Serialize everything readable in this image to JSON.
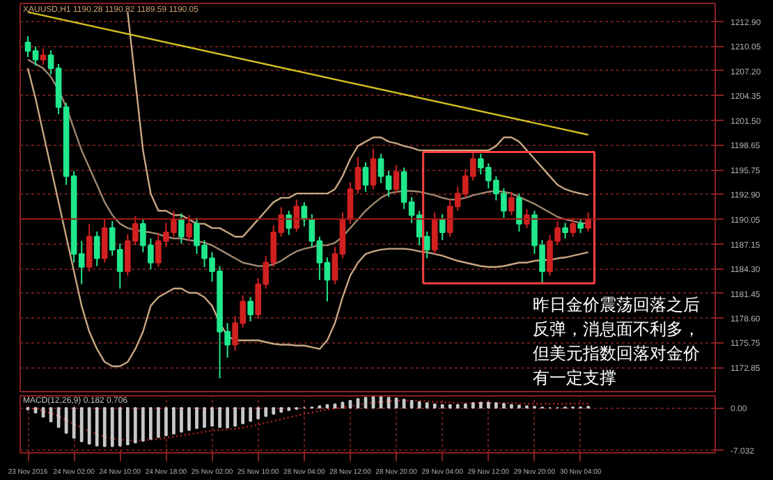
{
  "chart_data": [
    {
      "type": "candlestick",
      "categories": [
        null,
        null,
        null,
        null,
        null,
        null,
        null,
        null,
        null,
        null,
        null,
        null,
        null,
        null,
        null,
        null,
        null,
        null,
        null,
        null,
        null,
        null,
        null,
        null,
        null,
        null,
        null,
        null,
        null,
        null,
        null,
        null,
        null,
        null,
        null,
        null,
        null,
        null,
        null,
        null,
        null,
        null,
        null,
        null,
        null,
        null,
        null,
        null,
        null,
        null,
        null,
        null,
        null,
        null,
        null,
        null,
        null,
        null,
        null,
        null,
        null,
        null,
        null,
        null,
        null,
        null,
        null,
        null,
        null,
        null,
        null,
        null,
        null,
        null
      ],
      "ohlc": [
        [
          1210.5,
          1211.2,
          1208.8,
          1209.5
        ],
        [
          1209.5,
          1210.0,
          1207.8,
          1208.5
        ],
        [
          1208.5,
          1209.8,
          1207.9,
          1209.0
        ],
        [
          1209.0,
          1209.6,
          1206.8,
          1207.5
        ],
        [
          1207.5,
          1208.0,
          1202.2,
          1203.0
        ],
        [
          1203.0,
          1203.5,
          1194.0,
          1195.0
        ],
        [
          1195.0,
          1195.6,
          1185.0,
          1186.0
        ],
        [
          1186.0,
          1187.5,
          1182.5,
          1184.5
        ],
        [
          1184.5,
          1189.5,
          1184.0,
          1188.0
        ],
        [
          1188.0,
          1188.6,
          1184.6,
          1185.5
        ],
        [
          1185.5,
          1190.0,
          1185.0,
          1189.0
        ],
        [
          1189.0,
          1189.8,
          1185.8,
          1186.5
        ],
        [
          1186.5,
          1187.2,
          1182.0,
          1184.0
        ],
        [
          1184.0,
          1188.3,
          1183.5,
          1187.5
        ],
        [
          1187.5,
          1190.4,
          1187.0,
          1189.5
        ],
        [
          1189.5,
          1190.0,
          1186.2,
          1187.0
        ],
        [
          1187.0,
          1187.8,
          1184.2,
          1185.0
        ],
        [
          1185.0,
          1188.4,
          1184.5,
          1187.5
        ],
        [
          1187.5,
          1189.6,
          1186.8,
          1188.5
        ],
        [
          1188.5,
          1191.0,
          1188.0,
          1190.0
        ],
        [
          1190.0,
          1190.7,
          1187.2,
          1188.0
        ],
        [
          1188.0,
          1190.5,
          1187.5,
          1189.5
        ],
        [
          1189.5,
          1190.2,
          1186.0,
          1187.0
        ],
        [
          1187.0,
          1187.6,
          1184.5,
          1185.5
        ],
        [
          1185.5,
          1186.2,
          1182.8,
          1184.0
        ],
        [
          1184.0,
          1184.6,
          1171.6,
          1177.0
        ],
        [
          1177.0,
          1178.0,
          1174.0,
          1175.5
        ],
        [
          1175.5,
          1178.8,
          1174.8,
          1178.0
        ],
        [
          1178.0,
          1181.2,
          1177.5,
          1180.5
        ],
        [
          1180.5,
          1181.0,
          1178.2,
          1179.0
        ],
        [
          1179.0,
          1183.2,
          1178.5,
          1182.5
        ],
        [
          1182.5,
          1185.8,
          1182.0,
          1185.0
        ],
        [
          1185.0,
          1189.3,
          1184.5,
          1188.5
        ],
        [
          1188.5,
          1191.4,
          1188.0,
          1190.5
        ],
        [
          1190.5,
          1191.0,
          1188.2,
          1189.0
        ],
        [
          1189.0,
          1192.3,
          1188.6,
          1191.5
        ],
        [
          1191.5,
          1192.0,
          1189.2,
          1190.0
        ],
        [
          1190.0,
          1190.6,
          1186.8,
          1187.5
        ],
        [
          1187.5,
          1188.0,
          1183.0,
          1185.0
        ],
        [
          1185.0,
          1185.6,
          1180.5,
          1183.0
        ],
        [
          1183.0,
          1186.8,
          1182.5,
          1186.0
        ],
        [
          1186.0,
          1190.8,
          1185.5,
          1190.0
        ],
        [
          1190.0,
          1194.3,
          1189.5,
          1193.5
        ],
        [
          1193.5,
          1197.2,
          1193.0,
          1196.0
        ],
        [
          1196.0,
          1196.6,
          1193.2,
          1194.0
        ],
        [
          1194.0,
          1198.2,
          1193.5,
          1197.0
        ],
        [
          1197.0,
          1197.6,
          1194.2,
          1195.0
        ],
        [
          1195.0,
          1195.6,
          1192.6,
          1193.5
        ],
        [
          1193.5,
          1196.3,
          1193.0,
          1195.5
        ],
        [
          1195.5,
          1196.0,
          1191.2,
          1192.0
        ],
        [
          1192.0,
          1192.6,
          1189.6,
          1190.5
        ],
        [
          1190.5,
          1191.0,
          1187.0,
          1188.0
        ],
        [
          1188.0,
          1188.6,
          1185.5,
          1186.5
        ],
        [
          1186.5,
          1190.8,
          1186.0,
          1190.0
        ],
        [
          1190.0,
          1190.6,
          1187.6,
          1188.5
        ],
        [
          1188.5,
          1192.3,
          1188.0,
          1191.5
        ],
        [
          1191.5,
          1193.8,
          1191.0,
          1193.0
        ],
        [
          1193.0,
          1195.8,
          1192.5,
          1195.0
        ],
        [
          1195.0,
          1197.8,
          1194.5,
          1197.0
        ],
        [
          1197.0,
          1197.6,
          1195.2,
          1196.0
        ],
        [
          1196.0,
          1196.5,
          1193.6,
          1194.5
        ],
        [
          1194.5,
          1195.0,
          1192.2,
          1193.0
        ],
        [
          1193.0,
          1193.6,
          1190.2,
          1191.0
        ],
        [
          1191.0,
          1193.2,
          1190.5,
          1192.5
        ],
        [
          1192.5,
          1193.0,
          1188.6,
          1189.5
        ],
        [
          1189.5,
          1191.2,
          1189.0,
          1190.5
        ],
        [
          1190.5,
          1191.0,
          1186.0,
          1187.0
        ],
        [
          1187.0,
          1187.6,
          1182.6,
          1184.0
        ],
        [
          1184.0,
          1188.2,
          1183.5,
          1187.5
        ],
        [
          1187.5,
          1189.8,
          1187.0,
          1189.0
        ],
        [
          1189.0,
          1189.6,
          1187.8,
          1188.5
        ],
        [
          1188.5,
          1190.2,
          1188.0,
          1189.5
        ],
        [
          1189.5,
          1190.0,
          1188.4,
          1189.0
        ],
        [
          1189.0,
          1190.8,
          1188.6,
          1190.0
        ]
      ],
      "series": [
        {
          "type": "line",
          "color": "#c8a882",
          "values": [
            null,
            null,
            null,
            null,
            null,
            null,
            null,
            null,
            null,
            null,
            null,
            null,
            null,
            1214,
            1206,
            1198,
            1193,
            1191,
            1191,
            1190.5,
            1190.5,
            1190,
            1189.5,
            1189.5,
            1189,
            1189,
            1188.5,
            1188,
            1188,
            1189,
            1190,
            1191,
            1192,
            1192.5,
            1192.5,
            1193,
            1193,
            1193,
            1193,
            1193,
            1193.5,
            1195,
            1197,
            1198.5,
            1199,
            1199.5,
            1199.5,
            1199,
            1198.8,
            1198.5,
            1198.3,
            1198,
            1198,
            1198,
            1198,
            1198,
            1198,
            1198,
            1198,
            1198,
            1198,
            1198.5,
            1199.5,
            1199.5,
            1199,
            1198,
            1197,
            1196,
            1195,
            1194,
            1193.5,
            1193.2,
            1193,
            1192.8
          ]
        },
        {
          "type": "line",
          "color": "#a08870",
          "values": [
            1208.5,
            1208,
            1207.5,
            1206.5,
            1205,
            1203,
            1200.5,
            1198,
            1196,
            1194,
            1192,
            1190.5,
            1189.5,
            1189,
            1188.8,
            1188.6,
            1188.5,
            1188.3,
            1188,
            1187.8,
            1187.8,
            1187.6,
            1187.5,
            1187.3,
            1187,
            1186.5,
            1186,
            1185.5,
            1185,
            1184.8,
            1184.6,
            1184.6,
            1184.8,
            1185.2,
            1185.8,
            1186.3,
            1186.6,
            1186.8,
            1187,
            1187,
            1187.3,
            1188,
            1189,
            1190,
            1191,
            1191.8,
            1192.5,
            1193,
            1193.2,
            1193.3,
            1193.3,
            1193.2,
            1193,
            1192.8,
            1192.5,
            1192.3,
            1192.3,
            1192.5,
            1192.8,
            1193,
            1193.2,
            1193.3,
            1193.2,
            1193,
            1192.6,
            1192.2,
            1191.8,
            1191.3,
            1190.8,
            1190.3,
            1190,
            1189.8,
            1189.6,
            1189.5
          ]
        },
        {
          "type": "line",
          "color": "#c8a882",
          "values": [
            1207.5,
            1204,
            1200,
            1196,
            1192,
            1188,
            1184,
            1180,
            1177,
            1175,
            1173.5,
            1173,
            1173,
            1173.5,
            1175,
            1177,
            1180,
            1181,
            1181.5,
            1182,
            1182,
            1181.5,
            1181.5,
            1181,
            1180,
            1178,
            1176.5,
            1176,
            1176,
            1176,
            1176,
            1175.8,
            1175.6,
            1175.5,
            1175.5,
            1175.4,
            1175.4,
            1175.2,
            1175,
            1176,
            1178,
            1181,
            1183.5,
            1185,
            1186,
            1186.3,
            1186.5,
            1186.6,
            1186.6,
            1186.6,
            1186.5,
            1186.3,
            1186.2,
            1186,
            1185.8,
            1185.5,
            1185.2,
            1185,
            1184.8,
            1184.6,
            1184.5,
            1184.5,
            1184.6,
            1184.8,
            1185,
            1185,
            1185.2,
            1185.3,
            1185.3,
            1185.5,
            1185.6,
            1185.8,
            1186,
            1186.2
          ]
        },
        {
          "type": "line",
          "color": "#d4c020",
          "values": [
            1214.0,
            null,
            null,
            null,
            null,
            null,
            null,
            null,
            null,
            null,
            null,
            null,
            null,
            null,
            null,
            null,
            null,
            null,
            null,
            null,
            null,
            null,
            null,
            null,
            null,
            null,
            null,
            null,
            null,
            null,
            null,
            null,
            null,
            null,
            null,
            null,
            null,
            null,
            null,
            null,
            null,
            null,
            null,
            null,
            null,
            null,
            null,
            null,
            null,
            null,
            null,
            null,
            null,
            null,
            null,
            null,
            null,
            null,
            null,
            null,
            null,
            null,
            null,
            null,
            null,
            null,
            null,
            null,
            null,
            null,
            null,
            null,
            null,
            1199.8
          ]
        }
      ],
      "ylim": [
        1169.9,
        1215.0
      ],
      "yticks": [
        {
          "value": 1212.9,
          "label": "1212.90"
        },
        {
          "value": 1210.05,
          "label": "1210.05"
        },
        {
          "value": 1207.2,
          "label": "1207.20"
        },
        {
          "value": 1204.35,
          "label": "1204.35"
        },
        {
          "value": 1201.5,
          "label": "1201.50"
        },
        {
          "value": 1198.65,
          "label": "1198.65"
        },
        {
          "value": 1195.75,
          "label": "1195.75"
        },
        {
          "value": 1192.9,
          "label": "1192.90"
        },
        {
          "value": 1187.15,
          "label": "1187.15"
        },
        {
          "value": 1184.3,
          "label": "1184.30"
        },
        {
          "value": 1181.45,
          "label": "1181.45"
        },
        {
          "value": 1178.6,
          "label": "1178.60"
        },
        {
          "value": 1175.75,
          "label": "1175.75"
        },
        {
          "value": 1172.85,
          "label": "1172.85"
        }
      ],
      "grid": true,
      "tick_labels": "y",
      "ref_lines": [
        {
          "axis": "y",
          "value": 1190.05,
          "label": "1190.05",
          "color": "#a01818"
        }
      ],
      "annotations": [
        "XAUUSD,H1 1190.28 1190.82 1189.59 1190.05",
        "昨日金价震荡回落之后反弹，消息面不利多，但美元指数回落对金价有一定支撑"
      ]
    },
    {
      "type": "bar",
      "categories": [
        "23 Nov 2016",
        null,
        null,
        null,
        null,
        null,
        "24 Nov 02:00",
        null,
        null,
        null,
        null,
        null,
        "24 Nov 10:00",
        null,
        null,
        null,
        null,
        null,
        "24 Nov 18:00",
        null,
        null,
        null,
        null,
        null,
        "25 Nov 02:00",
        null,
        null,
        null,
        null,
        null,
        "25 Nov 10:00",
        null,
        null,
        null,
        null,
        null,
        "28 Nov 04:00",
        null,
        null,
        null,
        null,
        null,
        "28 Nov 12:00",
        null,
        null,
        null,
        null,
        null,
        "28 Nov 20:00",
        null,
        null,
        null,
        null,
        null,
        "29 Nov 04:00",
        null,
        null,
        null,
        null,
        null,
        "29 Nov 12:00",
        null,
        null,
        null,
        null,
        null,
        "29 Nov 20:00",
        null,
        null,
        null,
        null,
        null,
        "30 Nov 04:00",
        null
      ],
      "title": "MACD(12,26,9) 0.182 0.706",
      "series": [
        {
          "type": "bar",
          "color": "#c8c8c8",
          "values": [
            -0.3,
            -0.8,
            -1.5,
            -2.3,
            -3.2,
            -4.2,
            -5.0,
            -5.6,
            -6.0,
            -6.3,
            -6.4,
            -6.4,
            -6.3,
            -6.1,
            -5.8,
            -5.5,
            -5.2,
            -4.9,
            -4.6,
            -4.3,
            -4.0,
            -3.7,
            -3.4,
            -3.2,
            -3.0,
            -3.2,
            -3.3,
            -3.0,
            -2.6,
            -2.2,
            -1.8,
            -1.4,
            -1.0,
            -0.7,
            -0.4,
            -0.2,
            0.0,
            0.1,
            0.3,
            0.5,
            0.6,
            0.9,
            1.2,
            1.5,
            1.7,
            1.8,
            1.8,
            1.7,
            1.6,
            1.4,
            1.2,
            1.0,
            0.8,
            0.6,
            0.5,
            0.5,
            0.5,
            0.6,
            0.8,
            0.9,
            0.9,
            0.8,
            0.7,
            0.5,
            0.4,
            0.3,
            0.2,
            0.1,
            0.0,
            0.0,
            0.1,
            0.1,
            0.1,
            0.2
          ]
        },
        {
          "type": "line",
          "color": "#c02020",
          "line_style": "dotted",
          "values": [
            0.0,
            -0.2,
            -0.5,
            -0.9,
            -1.4,
            -2.0,
            -2.7,
            -3.3,
            -3.9,
            -4.4,
            -4.8,
            -5.1,
            -5.3,
            -5.4,
            -5.4,
            -5.4,
            -5.3,
            -5.2,
            -5.0,
            -4.8,
            -4.6,
            -4.4,
            -4.2,
            -4.0,
            -3.8,
            -3.7,
            -3.6,
            -3.5,
            -3.3,
            -3.1,
            -2.8,
            -2.5,
            -2.2,
            -1.9,
            -1.6,
            -1.3,
            -1.0,
            -0.8,
            -0.5,
            -0.3,
            -0.1,
            0.1,
            0.3,
            0.5,
            0.7,
            0.9,
            1.0,
            1.1,
            1.2,
            1.2,
            1.2,
            1.2,
            1.1,
            1.0,
            0.9,
            0.9,
            0.8,
            0.8,
            0.8,
            0.8,
            0.8,
            0.8,
            0.8,
            0.8,
            0.7,
            0.7,
            0.7,
            0.7,
            0.7,
            0.7,
            0.7,
            0.7,
            0.7,
            0.7
          ]
        }
      ],
      "ylim": [
        -7.5,
        2.0
      ],
      "yticks": [
        {
          "value": 0,
          "label": "0.00"
        },
        {
          "value": -7.032,
          "label": "-7.032"
        }
      ],
      "grid": true
    }
  ]
}
